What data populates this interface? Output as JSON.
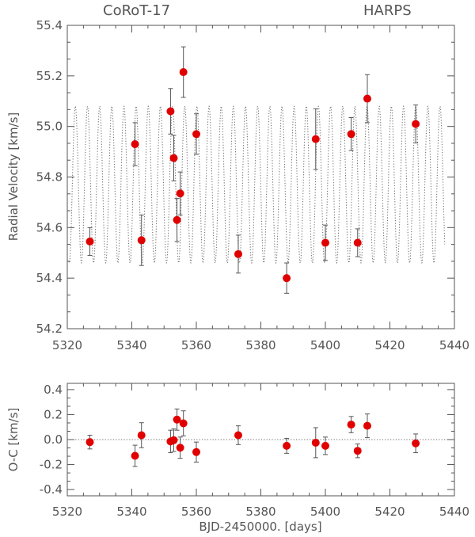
{
  "chart_data": [
    {
      "type": "scatter",
      "title_left": "CoRoT-17",
      "title_right": "HARPS",
      "xlabel": "",
      "ylabel": "Radial Velocity [km/s]",
      "xlim": [
        5320,
        5440
      ],
      "ylim": [
        54.2,
        55.4
      ],
      "xticks": [
        "5320",
        "5340",
        "5360",
        "5380",
        "5400",
        "5420",
        "5440"
      ],
      "yticks": [
        "54.2",
        "54.4",
        "54.6",
        "54.8",
        "55.0",
        "55.2",
        "55.4"
      ],
      "model": {
        "period_days": 3.768,
        "phase_day": 5322.5,
        "mean": 54.77,
        "amplitude": 0.31,
        "x_range": [
          5320.5,
          5437
        ]
      },
      "points": [
        {
          "x": 5327,
          "y": 54.545,
          "err": 0.055
        },
        {
          "x": 5341,
          "y": 54.93,
          "err": 0.085
        },
        {
          "x": 5343,
          "y": 54.55,
          "err": 0.1
        },
        {
          "x": 5352,
          "y": 55.06,
          "err": 0.09
        },
        {
          "x": 5353,
          "y": 54.875,
          "err": 0.09
        },
        {
          "x": 5354,
          "y": 54.63,
          "err": 0.085
        },
        {
          "x": 5355,
          "y": 54.735,
          "err": 0.085
        },
        {
          "x": 5356,
          "y": 55.215,
          "err": 0.1
        },
        {
          "x": 5360,
          "y": 54.97,
          "err": 0.08
        },
        {
          "x": 5373,
          "y": 54.495,
          "err": 0.075
        },
        {
          "x": 5388,
          "y": 54.4,
          "err": 0.06
        },
        {
          "x": 5397,
          "y": 54.95,
          "err": 0.12
        },
        {
          "x": 5400,
          "y": 54.54,
          "err": 0.07
        },
        {
          "x": 5408,
          "y": 54.97,
          "err": 0.065
        },
        {
          "x": 5410,
          "y": 54.54,
          "err": 0.055
        },
        {
          "x": 5413,
          "y": 55.11,
          "err": 0.095
        },
        {
          "x": 5428,
          "y": 55.01,
          "err": 0.075
        }
      ],
      "marker_color": "#e00000"
    },
    {
      "type": "scatter",
      "xlabel": "BJD-2450000. [days]",
      "ylabel": "O-C [km/s]",
      "xlim": [
        5320,
        5440
      ],
      "ylim": [
        -0.45,
        0.45
      ],
      "xticks": [
        "5320",
        "5340",
        "5360",
        "5380",
        "5400",
        "5420",
        "5440"
      ],
      "yticks": [
        "-0.4",
        "-0.2",
        "0.0",
        "0.2",
        "0.4"
      ],
      "reference_line": 0.0,
      "points": [
        {
          "x": 5327,
          "y": -0.02,
          "err": 0.055
        },
        {
          "x": 5341,
          "y": -0.13,
          "err": 0.085
        },
        {
          "x": 5343,
          "y": 0.035,
          "err": 0.1
        },
        {
          "x": 5352,
          "y": -0.015,
          "err": 0.09
        },
        {
          "x": 5353,
          "y": -0.005,
          "err": 0.09
        },
        {
          "x": 5354,
          "y": 0.16,
          "err": 0.085
        },
        {
          "x": 5355,
          "y": -0.065,
          "err": 0.085
        },
        {
          "x": 5356,
          "y": 0.13,
          "err": 0.1
        },
        {
          "x": 5360,
          "y": -0.1,
          "err": 0.08
        },
        {
          "x": 5373,
          "y": 0.035,
          "err": 0.075
        },
        {
          "x": 5388,
          "y": -0.05,
          "err": 0.06
        },
        {
          "x": 5397,
          "y": -0.025,
          "err": 0.12
        },
        {
          "x": 5400,
          "y": -0.05,
          "err": 0.07
        },
        {
          "x": 5408,
          "y": 0.12,
          "err": 0.065
        },
        {
          "x": 5410,
          "y": -0.09,
          "err": 0.055
        },
        {
          "x": 5413,
          "y": 0.11,
          "err": 0.095
        },
        {
          "x": 5428,
          "y": -0.03,
          "err": 0.075
        }
      ],
      "marker_color": "#e00000"
    }
  ]
}
